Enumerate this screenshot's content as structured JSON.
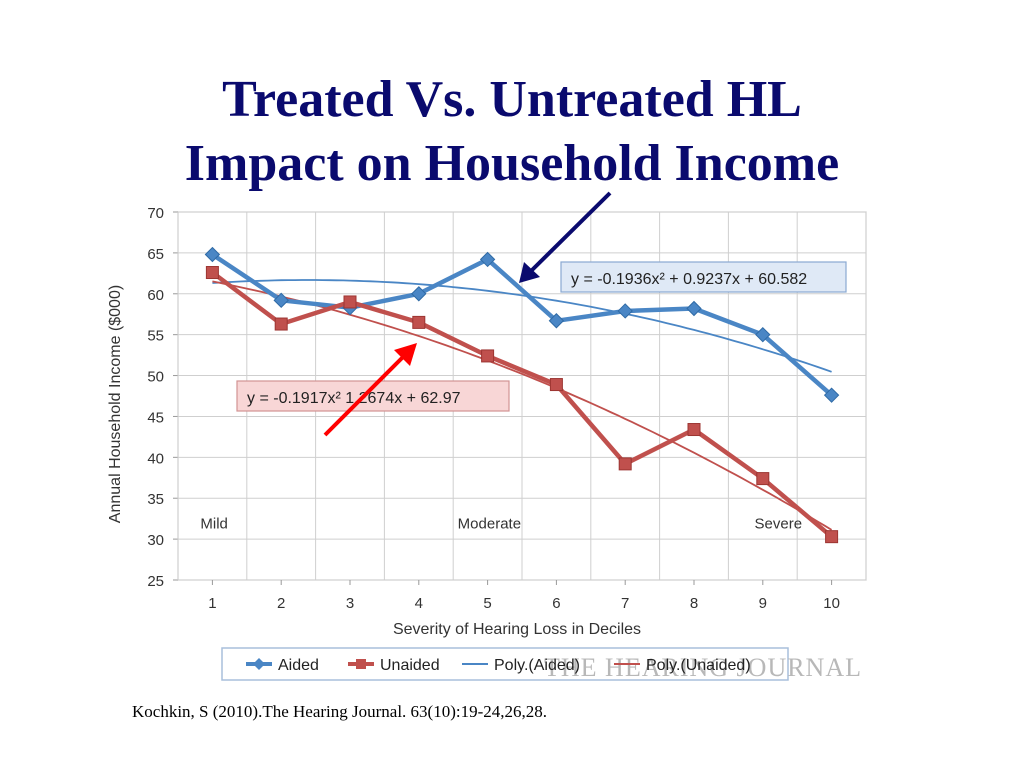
{
  "slide": {
    "title_line1": "Treated Vs. Untreated HL",
    "title_line2": "Impact on Household Income",
    "citation": "Kochkin, S (2010).The Hearing Journal. 63(10):19-24,26,28."
  },
  "chart_data": {
    "type": "line",
    "xlabel": "Severity of Hearing Loss in Deciles",
    "ylabel": "Annual Household Income ($000)",
    "x": [
      1,
      2,
      3,
      4,
      5,
      6,
      7,
      8,
      9,
      10
    ],
    "xlim": [
      0.5,
      10.5
    ],
    "ylim": [
      25,
      70
    ],
    "yticks": [
      25,
      30,
      35,
      40,
      45,
      50,
      55,
      60,
      65,
      70
    ],
    "grid": true,
    "severity_labels": [
      {
        "text": "Mild",
        "x": 1
      },
      {
        "text": "Moderate",
        "x": 5.2
      },
      {
        "text": "Severe",
        "x": 9.4
      }
    ],
    "series": [
      {
        "name": "Aided",
        "values": [
          64.8,
          59.2,
          58.3,
          60.0,
          64.2,
          56.7,
          57.9,
          58.2,
          55.0,
          47.6
        ],
        "color": "#4a86c5",
        "marker": "diamond"
      },
      {
        "name": "Unaided",
        "values": [
          62.6,
          56.3,
          59.0,
          56.5,
          52.4,
          48.9,
          39.2,
          43.4,
          37.4,
          30.3
        ],
        "color": "#c0504d",
        "marker": "square"
      }
    ],
    "trendlines": [
      {
        "name": "Poly.(Aided)",
        "a": -0.1936,
        "b": 0.9237,
        "c": 60.582,
        "equation": "y = -0.1936x² + 0.9237x + 60.582",
        "color": "#4a86c5"
      },
      {
        "name": "Poly.(Unaided)",
        "a": -0.1917,
        "b": -1.2674,
        "c": 62.97,
        "equation": "y = -0.1917x²  1.2674x + 62.97",
        "color": "#c0504d"
      }
    ],
    "legend": [
      "Aided",
      "Unaided",
      "Poly.(Aided)",
      "Poly.(Unaided)"
    ],
    "legend_position": "bottom",
    "watermark": "THE HEARING JOURNAL",
    "annotations": [
      {
        "type": "arrow",
        "color": "#0a0a6e",
        "points_to": "Aided equation"
      },
      {
        "type": "arrow",
        "color": "#ff0000",
        "points_to": "Unaided equation"
      }
    ]
  }
}
